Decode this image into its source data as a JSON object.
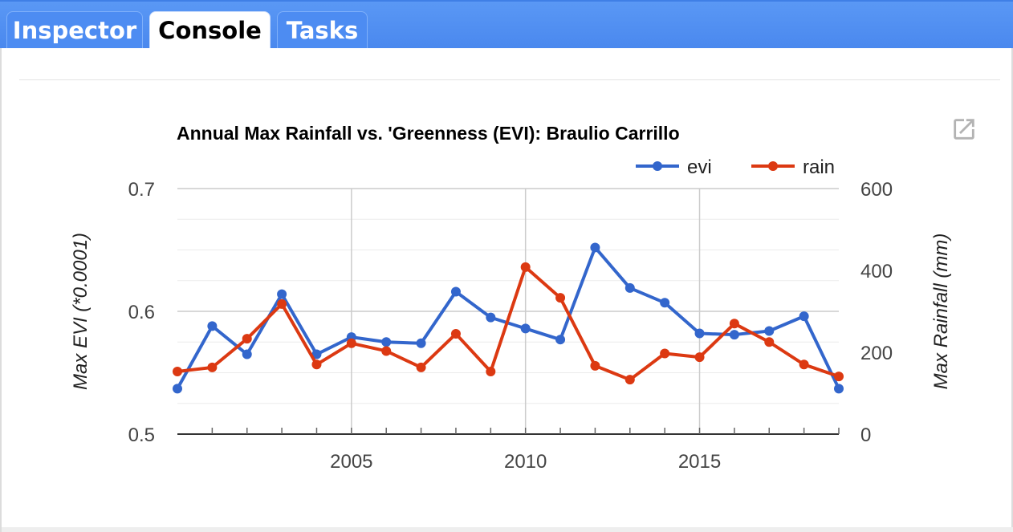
{
  "tabs": [
    {
      "label": "Inspector",
      "active": false
    },
    {
      "label": "Console",
      "active": true
    },
    {
      "label": "Tasks",
      "active": false
    }
  ],
  "popout_icon": "open-in-new-icon",
  "chart_data": {
    "type": "line",
    "title": "Annual Max Rainfall vs. 'Greenness (EVI): Braulio Carrillo",
    "ylabel_left": "Max EVI (*0.0001)",
    "ylabel_right": "Max Rainfall (mm)",
    "y_left_lim": [
      0.5,
      0.7
    ],
    "y_left_ticks": [
      "0.5",
      "0.6",
      "0.7"
    ],
    "y_right_lim": [
      0,
      600
    ],
    "y_right_ticks": [
      "0",
      "200",
      "400",
      "600"
    ],
    "x_lim": [
      2000,
      2019
    ],
    "x_ticks": [
      "2005",
      "2010",
      "2015"
    ],
    "legend_position": "top-right",
    "x": [
      2000,
      2001,
      2002,
      2003,
      2004,
      2005,
      2006,
      2007,
      2008,
      2009,
      2010,
      2011,
      2012,
      2013,
      2014,
      2015,
      2016,
      2017,
      2018,
      2019
    ],
    "series": [
      {
        "name": "evi",
        "axis": "left",
        "color": "#3366cc",
        "values": [
          0.537,
          0.588,
          0.565,
          0.614,
          0.565,
          0.579,
          0.575,
          0.574,
          0.616,
          0.595,
          0.586,
          0.577,
          0.652,
          0.619,
          0.607,
          0.582,
          0.581,
          0.584,
          0.596,
          0.537
        ]
      },
      {
        "name": "rain",
        "axis": "right",
        "color": "#dc3912",
        "values": [
          153,
          163,
          233,
          318,
          170,
          222,
          203,
          163,
          245,
          153,
          408,
          333,
          167,
          133,
          197,
          188,
          270,
          225,
          170,
          141
        ]
      }
    ]
  }
}
